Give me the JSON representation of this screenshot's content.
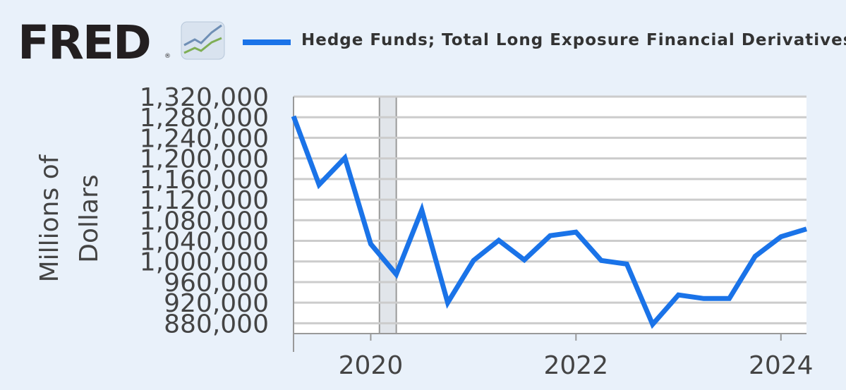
{
  "header": {
    "logo_text": "FRED",
    "logo_registered": "®",
    "legend_label": "Hedge Funds; Total Long Exposure Financial Derivatives",
    "logo_icon": "fred-graph-icon"
  },
  "colors": {
    "background": "#e9f1fa",
    "plot_background": "#ffffff",
    "series": "#1a73e8",
    "grid": "#cccccc",
    "recession": "#e1e5ea",
    "text": "#444444"
  },
  "chart_data": {
    "type": "line",
    "title": "",
    "ylabel": "Millions of Dollars",
    "ylabel_lines": [
      "Millions of",
      "Dollars"
    ],
    "xlabel": "",
    "ylim": [
      860000,
      1320000
    ],
    "xlim": [
      "2019-04-01",
      "2024-04-01"
    ],
    "y_ticks": [
      880000,
      920000,
      960000,
      1000000,
      1040000,
      1080000,
      1120000,
      1160000,
      1200000,
      1240000,
      1280000,
      1320000
    ],
    "y_tick_labels": [
      "880,000",
      "920,000",
      "960,000",
      "1,000,000",
      "1,040,000",
      "1,080,000",
      "1,120,000",
      "1,160,000",
      "1,200,000",
      "1,240,000",
      "1,280,000",
      "1,320,000"
    ],
    "x_ticks": [
      "2020-01-01",
      "2022-01-01",
      "2024-01-01"
    ],
    "x_tick_labels": [
      "2020",
      "2022",
      "2024"
    ],
    "recession": {
      "start": "2020-02-01",
      "end": "2020-04-01"
    },
    "grid": true,
    "series": [
      {
        "name": "Hedge Funds; Total Long Exposure Financial Derivatives",
        "x": [
          "2019-04-01",
          "2019-07-01",
          "2019-10-01",
          "2020-01-01",
          "2020-04-01",
          "2020-07-01",
          "2020-10-01",
          "2021-01-01",
          "2021-04-01",
          "2021-07-01",
          "2021-10-01",
          "2022-01-01",
          "2022-04-01",
          "2022-07-01",
          "2022-10-01",
          "2023-01-01",
          "2023-04-01",
          "2023-07-01",
          "2023-10-01",
          "2024-01-01",
          "2024-04-01"
        ],
        "values": [
          1282000,
          1149000,
          1201000,
          1034000,
          975000,
          1100000,
          920000,
          1002000,
          1041000,
          1003000,
          1050000,
          1057000,
          1002000,
          995000,
          878000,
          935000,
          928000,
          928000,
          1010000,
          1048000,
          1063000
        ]
      }
    ]
  }
}
